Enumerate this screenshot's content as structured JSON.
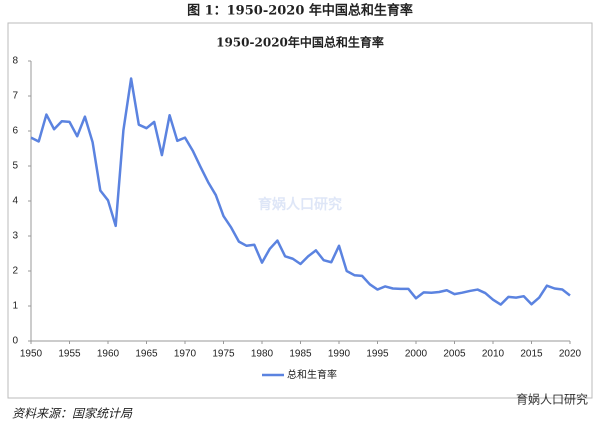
{
  "heading": "图 1：1950-2020 年中国总和生育率",
  "source": "资料来源：国家统计局",
  "watermark": "育娲人口研究",
  "footer_brand": "育娲人口研究",
  "chart_data": {
    "type": "line",
    "title": "1950-2020年中国总和生育率",
    "x": [
      1950,
      1951,
      1952,
      1953,
      1954,
      1955,
      1956,
      1957,
      1958,
      1959,
      1960,
      1961,
      1962,
      1963,
      1964,
      1965,
      1966,
      1967,
      1968,
      1969,
      1970,
      1971,
      1972,
      1973,
      1974,
      1975,
      1976,
      1977,
      1978,
      1979,
      1980,
      1981,
      1982,
      1983,
      1984,
      1985,
      1986,
      1987,
      1988,
      1989,
      1990,
      1991,
      1992,
      1993,
      1994,
      1995,
      1996,
      1997,
      1998,
      1999,
      2000,
      2001,
      2002,
      2003,
      2004,
      2005,
      2006,
      2007,
      2008,
      2009,
      2010,
      2011,
      2012,
      2013,
      2014,
      2015,
      2016,
      2017,
      2018,
      2019,
      2020
    ],
    "series": [
      {
        "name": "总和生育率",
        "color": "#5b83e0",
        "values": [
          5.81,
          5.7,
          6.47,
          6.05,
          6.28,
          6.26,
          5.85,
          6.41,
          5.68,
          4.3,
          4.02,
          3.29,
          6.02,
          7.5,
          6.18,
          6.08,
          6.26,
          5.31,
          6.45,
          5.72,
          5.81,
          5.44,
          4.98,
          4.54,
          4.17,
          3.57,
          3.24,
          2.84,
          2.72,
          2.75,
          2.24,
          2.63,
          2.87,
          2.42,
          2.35,
          2.2,
          2.42,
          2.59,
          2.31,
          2.25,
          2.72,
          2.0,
          1.88,
          1.86,
          1.62,
          1.47,
          1.56,
          1.5,
          1.49,
          1.49,
          1.22,
          1.39,
          1.38,
          1.4,
          1.45,
          1.34,
          1.38,
          1.43,
          1.47,
          1.37,
          1.18,
          1.04,
          1.26,
          1.24,
          1.28,
          1.05,
          1.24,
          1.58,
          1.5,
          1.47,
          1.3
        ]
      }
    ],
    "xlim": [
      1950,
      2020
    ],
    "xticks": [
      1950,
      1955,
      1960,
      1965,
      1970,
      1975,
      1980,
      1985,
      1990,
      1995,
      2000,
      2005,
      2010,
      2015,
      2020
    ],
    "ylim": [
      0,
      8
    ],
    "yticks": [
      0,
      1,
      2,
      3,
      4,
      5,
      6,
      7,
      8
    ],
    "grid": false,
    "legend": "bottom"
  }
}
